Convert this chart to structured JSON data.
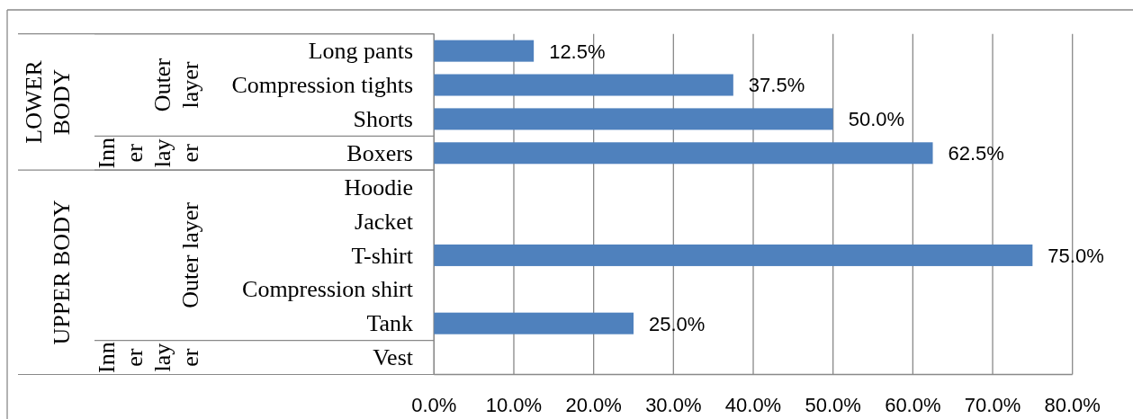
{
  "chart_data": {
    "type": "bar",
    "orientation": "horizontal",
    "categories": [
      "Long pants",
      "Compression tights",
      "Shorts",
      "Boxers",
      "Hoodie",
      "Jacket",
      "T-shirt",
      "Compression shirt",
      "Tank",
      "Vest"
    ],
    "values": [
      12.5,
      37.5,
      50.0,
      62.5,
      null,
      null,
      75.0,
      null,
      25.0,
      null
    ],
    "value_labels": [
      "12.5%",
      "37.5%",
      "50.0%",
      "62.5%",
      null,
      null,
      "75.0%",
      null,
      "25.0%",
      null
    ],
    "color": "#4f81bd",
    "xlim": [
      0,
      80
    ],
    "xticks": [
      {
        "value": 0,
        "label": "0.0%"
      },
      {
        "value": 10,
        "label": "10.0%"
      },
      {
        "value": 20,
        "label": "20.0%"
      },
      {
        "value": 30,
        "label": "30.0%"
      },
      {
        "value": 40,
        "label": "40.0%"
      },
      {
        "value": 50,
        "label": "50.0%"
      },
      {
        "value": 60,
        "label": "60.0%"
      },
      {
        "value": 70,
        "label": "70.0%"
      },
      {
        "value": 80,
        "label": "80.0%"
      }
    ],
    "grid": "x",
    "annotations": [
      "LOWER BODY",
      "Outer layer",
      "Inner layer",
      "UPPER BODY",
      "Outer layer",
      "Inner layer"
    ]
  }
}
